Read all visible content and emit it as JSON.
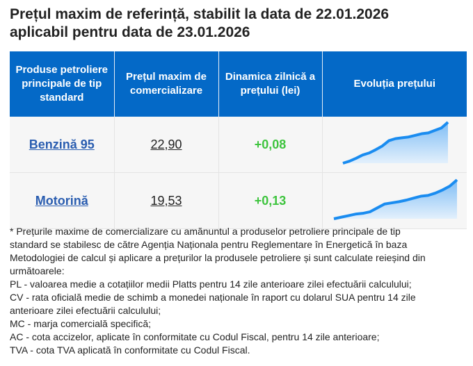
{
  "title_line1": "Prețul maxim de referință, stabilit la data de 22.01.2026",
  "title_line2": "aplicabil pentru data de 23.01.2026",
  "table": {
    "headers": [
      "Produse petroliere principale de tip standard",
      "Prețul maxim de comercializare",
      "Dinamica zilnică a prețului (lei)",
      "Evoluția prețului"
    ],
    "rows": [
      {
        "product": "Benzină 95",
        "price": "22,90",
        "change": "+0,08",
        "trend": "rising"
      },
      {
        "product": "Motorină",
        "price": "19,53",
        "change": "+0,13",
        "trend": "rising"
      }
    ]
  },
  "colors": {
    "header_bg": "#0469c7",
    "link": "#2a5db0",
    "positive": "#3ec43e",
    "sparkline": "#1a8cf0"
  },
  "note_lines": [
    "* Prețurile maxime de comercializare cu amănuntul a produselor petroliere principale de tip",
    "standard se stabilesc de către Agenția Naționala pentru Reglementare în Energetică în baza",
    "Metodologiei de calcul și aplicare a prețurilor la produsele petroliere și sunt calculate reieșind din",
    "următoarele:",
    "PL - valoarea medie a cotațiilor medii Platts pentru 14 zile anterioare zilei efectuării calculului;",
    "CV - rata oficială medie de schimb a monedei naționale în raport cu dolarul SUA pentru 14 zile",
    "anterioare zilei efectuării calculului;",
    "MC - marja comercială specifică;",
    "AC - cota accizelor, aplicate în conformitate cu Codul Fiscal, pentru 14 zile anterioare;",
    "TVA - cota TVA aplicată în conformitate cu Codul Fiscal."
  ]
}
